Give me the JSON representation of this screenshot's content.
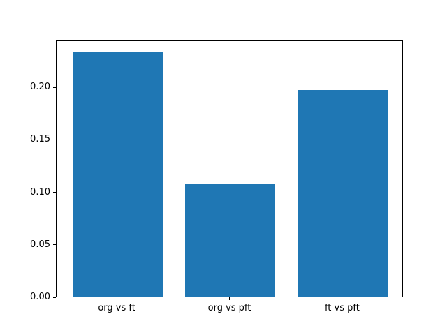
{
  "chart_data": {
    "type": "bar",
    "title": "",
    "xlabel": "",
    "ylabel": "",
    "categories": [
      "org vs ft",
      "org vs pft",
      "ft vs pft"
    ],
    "values": [
      0.233,
      0.108,
      0.197
    ],
    "bar_color": "#1f77b4",
    "bar_width_fraction": 0.8,
    "xlim": [
      -0.54,
      2.54
    ],
    "ylim": [
      0,
      0.2447
    ],
    "yticks": [
      0.0,
      0.05,
      0.1,
      0.15,
      0.2
    ],
    "ytick_labels": [
      "0.00",
      "0.05",
      "0.10",
      "0.15",
      "0.20"
    ],
    "grid": false,
    "legend": null,
    "background_color": "#ffffff",
    "spine_color": "#000000"
  }
}
